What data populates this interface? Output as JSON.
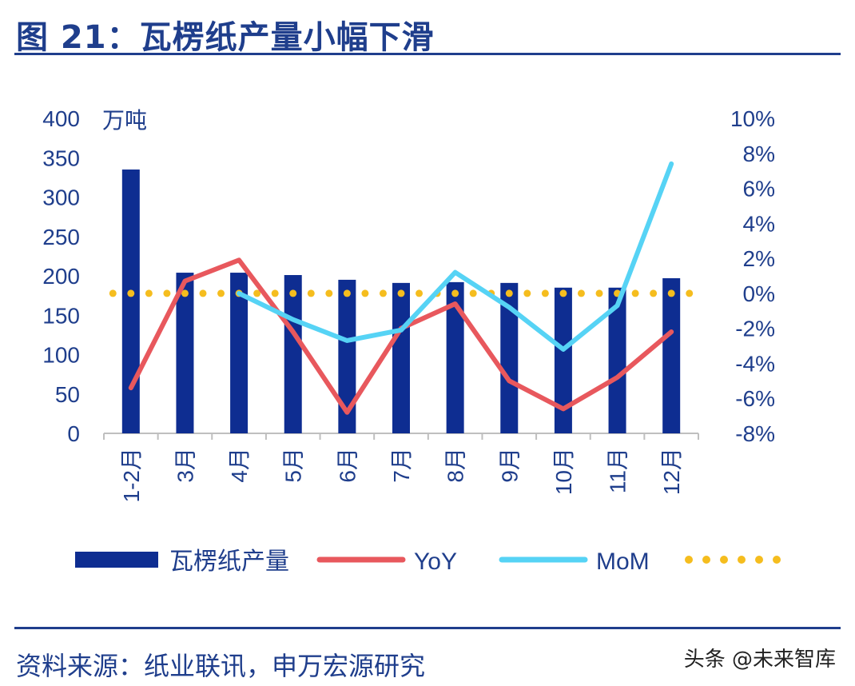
{
  "title": "图 21：瓦楞纸产量小幅下滑",
  "source": "资料来源：纸业联讯，申万宏源研究",
  "watermark": "头条 @未来智库",
  "chart_data": {
    "type": "bar",
    "categories": [
      "1-2月",
      "3月",
      "4月",
      "5月",
      "6月",
      "7月",
      "8月",
      "9月",
      "10月",
      "11月",
      "12月"
    ],
    "unit_label": "万吨",
    "left_axis": {
      "ylim": [
        0,
        400
      ],
      "ticks": [
        "0",
        "50",
        "100",
        "150",
        "200",
        "250",
        "300",
        "350",
        "400"
      ]
    },
    "right_axis": {
      "ylim": [
        -8,
        10
      ],
      "ticks": [
        "-8%",
        "-6%",
        "-4%",
        "-2%",
        "0%",
        "2%",
        "4%",
        "6%",
        "8%",
        "10%"
      ]
    },
    "series": [
      {
        "name": "瓦楞纸产量",
        "kind": "bar",
        "axis": "left",
        "color": "#0e2d91",
        "values": [
          335,
          204,
          204,
          201,
          195,
          191,
          192,
          191,
          185,
          185,
          197
        ]
      },
      {
        "name": "YoY",
        "kind": "line",
        "axis": "right",
        "color": "#e8585d",
        "values": [
          -5.4,
          0.7,
          1.9,
          -2.2,
          -6.8,
          -2.0,
          -0.6,
          -5.0,
          -6.6,
          -4.8,
          -2.2
        ]
      },
      {
        "name": "MoM",
        "kind": "line",
        "axis": "right",
        "color": "#56d3f5",
        "values": [
          null,
          null,
          0.0,
          -1.5,
          -2.7,
          -2.1,
          1.2,
          -0.8,
          -3.2,
          -0.7,
          7.4
        ]
      },
      {
        "name": "",
        "kind": "dotted",
        "axis": "right",
        "color": "#f5bd1e",
        "values": [
          0,
          0,
          0,
          0,
          0,
          0,
          0,
          0,
          0,
          0,
          0
        ]
      }
    ],
    "legend_position": "bottom",
    "grid": false
  }
}
